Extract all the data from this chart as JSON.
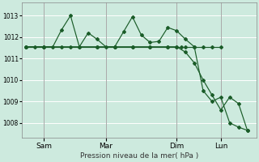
{
  "background_color": "#cdeade",
  "grid_color": "#b0cfc0",
  "line_color": "#1a5c28",
  "yticks": [
    1008,
    1009,
    1010,
    1011,
    1012,
    1013
  ],
  "ylim": [
    1007.3,
    1013.6
  ],
  "xlabel": "Pression niveau de la mer( hPa )",
  "xtick_labels": [
    "Sam",
    "Mar",
    "Dim",
    "Lun"
  ],
  "xtick_pos": [
    2,
    9,
    17,
    22
  ],
  "xlim": [
    -0.5,
    26
  ],
  "vline_x": [
    2,
    9,
    17,
    22
  ],
  "s1_x": [
    0,
    1,
    2,
    3,
    4,
    5,
    6,
    7,
    8,
    9,
    10,
    11,
    12,
    13,
    14,
    15,
    16,
    17,
    18,
    19,
    20,
    21,
    22,
    23,
    24,
    25
  ],
  "s1_y": [
    1011.55,
    1011.55,
    1011.55,
    1011.55,
    1012.35,
    1013.0,
    1011.55,
    1012.2,
    1011.9,
    1011.55,
    1011.55,
    1012.25,
    1012.95,
    1012.1,
    1011.75,
    1011.8,
    1012.45,
    1012.3,
    1011.9,
    1011.55,
    1009.5,
    1009.0,
    1009.2,
    1008.0,
    1007.8,
    1007.65
  ],
  "s2_x": [
    0,
    2,
    4,
    6,
    8,
    10,
    12,
    14,
    16,
    17,
    18,
    19,
    20,
    21,
    22,
    23,
    24,
    25
  ],
  "s2_y": [
    1011.55,
    1011.55,
    1011.55,
    1011.55,
    1011.55,
    1011.55,
    1011.55,
    1011.55,
    1011.55,
    1011.55,
    1011.3,
    1010.8,
    1010.0,
    1009.3,
    1008.6,
    1009.2,
    1008.9,
    1007.65
  ],
  "s3_x": [
    0,
    2,
    5,
    8,
    10,
    12,
    14,
    16,
    17,
    17.5,
    18,
    19,
    20,
    21,
    22
  ],
  "s3_y": [
    1011.55,
    1011.55,
    1011.55,
    1011.55,
    1011.55,
    1011.55,
    1011.55,
    1011.55,
    1011.55,
    1011.55,
    1011.55,
    1011.55,
    1011.55,
    1011.55,
    1011.55
  ]
}
